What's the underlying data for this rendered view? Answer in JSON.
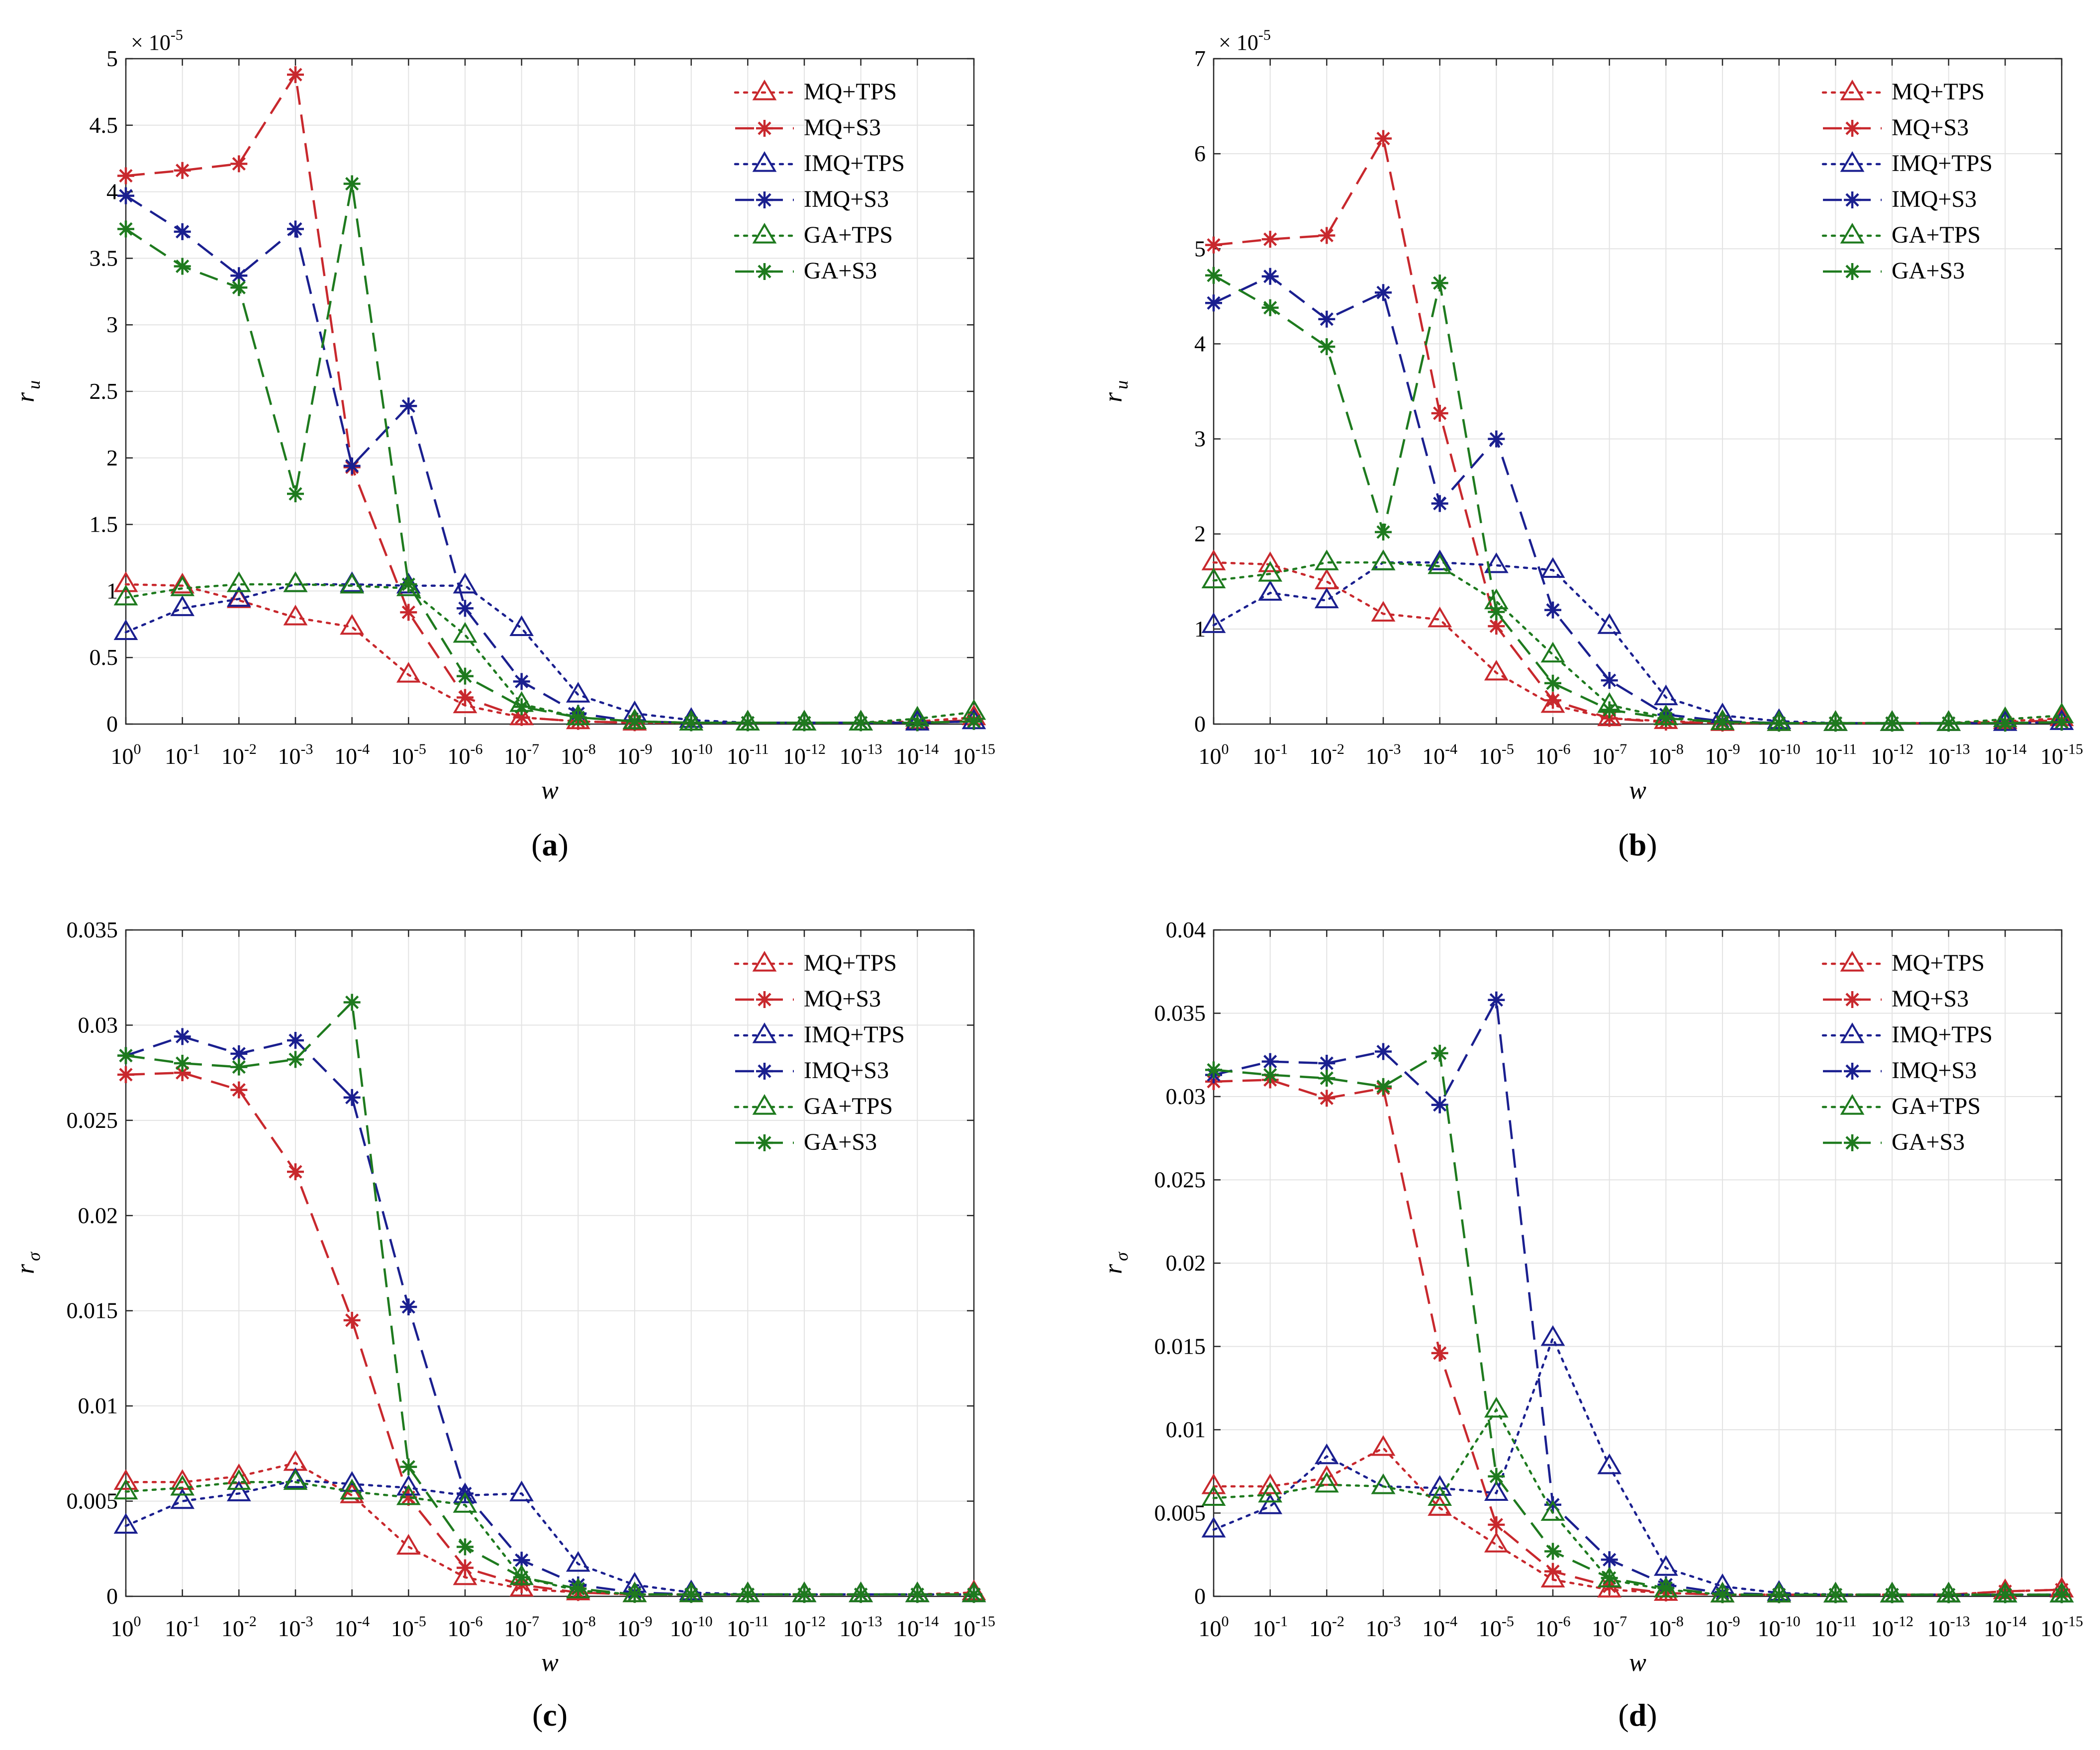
{
  "chart_data": [
    {
      "panel": "a",
      "type": "line",
      "xlabel": "w",
      "ylabel": "r",
      "ylabel_sub": "u",
      "ylim": [
        0,
        5
      ],
      "yticks": [
        0,
        0.5,
        1,
        1.5,
        2,
        2.5,
        3,
        3.5,
        4,
        4.5,
        5
      ],
      "ytick_labels": [
        "0",
        "0.5",
        "1",
        "1.5",
        "2",
        "2.5",
        "3",
        "3.5",
        "4",
        "4.5",
        "5"
      ],
      "y_multiplier": {
        "base": "× 10",
        "exponent": "-5"
      },
      "x_tick_base": "10",
      "x_tick_exponents": [
        "0",
        "-1",
        "-2",
        "-3",
        "-4",
        "-5",
        "-6",
        "-7",
        "-8",
        "-9",
        "-10",
        "-11",
        "-12",
        "-13",
        "-14",
        "-15"
      ],
      "grid": true,
      "legend_position": "top-right",
      "series": [
        {
          "name": "MQ+TPS",
          "color": "#c8282d",
          "line": "dotted",
          "marker": "triangle",
          "values": [
            1.05,
            1.04,
            0.93,
            0.8,
            0.73,
            0.37,
            0.14,
            0.05,
            0.02,
            0.01,
            0.01,
            0.01,
            0.01,
            0.01,
            0.02,
            0.05
          ]
        },
        {
          "name": "MQ+S3",
          "color": "#c8282d",
          "line": "dashed",
          "marker": "star",
          "values": [
            4.12,
            4.16,
            4.21,
            4.88,
            1.93,
            0.84,
            0.2,
            0.05,
            0.02,
            0.01,
            0.01,
            0.01,
            0.01,
            0.01,
            0.01,
            0.03
          ]
        },
        {
          "name": "IMQ+TPS",
          "color": "#1a1f8f",
          "line": "dotted",
          "marker": "triangle",
          "values": [
            0.69,
            0.87,
            0.94,
            1.05,
            1.05,
            1.04,
            1.04,
            0.72,
            0.22,
            0.08,
            0.03,
            0.01,
            0.01,
            0.01,
            0.01,
            0.02
          ]
        },
        {
          "name": "IMQ+S3",
          "color": "#1a1f8f",
          "line": "dashed",
          "marker": "star",
          "values": [
            3.97,
            3.7,
            3.37,
            3.72,
            1.94,
            2.39,
            0.87,
            0.32,
            0.08,
            0.02,
            0.01,
            0.01,
            0.01,
            0.01,
            0.01,
            0.02
          ]
        },
        {
          "name": "GA+TPS",
          "color": "#1e7a1e",
          "line": "dotted",
          "marker": "triangle",
          "values": [
            0.95,
            1.02,
            1.05,
            1.05,
            1.04,
            1.02,
            0.67,
            0.15,
            0.05,
            0.02,
            0.01,
            0.01,
            0.01,
            0.01,
            0.04,
            0.09
          ]
        },
        {
          "name": "GA+S3",
          "color": "#1e7a1e",
          "line": "dashed",
          "marker": "star",
          "values": [
            3.72,
            3.44,
            3.28,
            1.73,
            4.06,
            1.05,
            0.36,
            0.13,
            0.05,
            0.02,
            0.01,
            0.01,
            0.01,
            0.01,
            0.01,
            0.02
          ]
        }
      ]
    },
    {
      "panel": "b",
      "type": "line",
      "xlabel": "w",
      "ylabel": "r",
      "ylabel_sub": "u",
      "ylim": [
        0,
        7
      ],
      "yticks": [
        0,
        1,
        2,
        3,
        4,
        5,
        6,
        7
      ],
      "ytick_labels": [
        "0",
        "1",
        "2",
        "3",
        "4",
        "5",
        "6",
        "7"
      ],
      "y_multiplier": {
        "base": "× 10",
        "exponent": "-5"
      },
      "x_tick_base": "10",
      "x_tick_exponents": [
        "0",
        "-1",
        "-2",
        "-3",
        "-4",
        "-5",
        "-6",
        "-7",
        "-8",
        "-9",
        "-10",
        "-11",
        "-12",
        "-13",
        "-14",
        "-15"
      ],
      "grid": true,
      "legend_position": "top-right",
      "series": [
        {
          "name": "MQ+TPS",
          "color": "#c8282d",
          "line": "dotted",
          "marker": "triangle",
          "values": [
            1.7,
            1.68,
            1.5,
            1.16,
            1.1,
            0.54,
            0.2,
            0.06,
            0.03,
            0.01,
            0.01,
            0.01,
            0.01,
            0.01,
            0.03,
            0.06
          ]
        },
        {
          "name": "MQ+S3",
          "color": "#c8282d",
          "line": "dashed",
          "marker": "star",
          "values": [
            5.04,
            5.1,
            5.14,
            6.16,
            3.27,
            1.03,
            0.25,
            0.06,
            0.02,
            0.01,
            0.01,
            0.01,
            0.01,
            0.01,
            0.02,
            0.04
          ]
        },
        {
          "name": "IMQ+TPS",
          "color": "#1a1f8f",
          "line": "dotted",
          "marker": "triangle",
          "values": [
            1.04,
            1.38,
            1.3,
            1.7,
            1.7,
            1.67,
            1.62,
            1.03,
            0.28,
            0.09,
            0.03,
            0.01,
            0.01,
            0.01,
            0.01,
            0.02
          ]
        },
        {
          "name": "IMQ+S3",
          "color": "#1a1f8f",
          "line": "dashed",
          "marker": "star",
          "values": [
            4.43,
            4.71,
            4.26,
            4.54,
            2.32,
            3.0,
            1.2,
            0.46,
            0.1,
            0.03,
            0.01,
            0.01,
            0.01,
            0.01,
            0.01,
            0.02
          ]
        },
        {
          "name": "GA+TPS",
          "color": "#1e7a1e",
          "line": "dotted",
          "marker": "triangle",
          "values": [
            1.51,
            1.58,
            1.7,
            1.7,
            1.66,
            1.29,
            0.73,
            0.2,
            0.07,
            0.02,
            0.01,
            0.01,
            0.01,
            0.01,
            0.05,
            0.09
          ]
        },
        {
          "name": "GA+S3",
          "color": "#1e7a1e",
          "line": "dashed",
          "marker": "star",
          "values": [
            4.72,
            4.38,
            3.97,
            2.02,
            4.64,
            1.18,
            0.43,
            0.15,
            0.06,
            0.02,
            0.01,
            0.01,
            0.01,
            0.01,
            0.01,
            0.02
          ]
        }
      ]
    },
    {
      "panel": "c",
      "type": "line",
      "xlabel": "w",
      "ylabel": "r",
      "ylabel_sub": "σ",
      "ylim": [
        0,
        0.035
      ],
      "yticks": [
        0,
        0.005,
        0.01,
        0.015,
        0.02,
        0.025,
        0.03,
        0.035
      ],
      "ytick_labels": [
        "0",
        "0.005",
        "0.01",
        "0.015",
        "0.02",
        "0.025",
        "0.03",
        "0.035"
      ],
      "x_tick_base": "10",
      "x_tick_exponents": [
        "0",
        "-1",
        "-2",
        "-3",
        "-4",
        "-5",
        "-6",
        "-7",
        "-8",
        "-9",
        "-10",
        "-11",
        "-12",
        "-13",
        "-14",
        "-15"
      ],
      "grid": true,
      "legend_position": "top-right",
      "series": [
        {
          "name": "MQ+TPS",
          "color": "#c8282d",
          "line": "dotted",
          "marker": "triangle",
          "values": [
            0.006,
            0.006,
            0.0063,
            0.007,
            0.0053,
            0.0026,
            0.001,
            0.0004,
            0.0002,
            0.0001,
            0.0001,
            0.0001,
            0.0001,
            0.0001,
            0.0001,
            0.0002
          ]
        },
        {
          "name": "MQ+S3",
          "color": "#c8282d",
          "line": "dashed",
          "marker": "star",
          "values": [
            0.0274,
            0.0275,
            0.0266,
            0.0223,
            0.0145,
            0.0052,
            0.0015,
            0.0006,
            0.0002,
            0.0001,
            0.0001,
            0.0001,
            0.0001,
            0.0001,
            0.0001,
            0.0001
          ]
        },
        {
          "name": "IMQ+TPS",
          "color": "#1a1f8f",
          "line": "dotted",
          "marker": "triangle",
          "values": [
            0.0037,
            0.005,
            0.0054,
            0.0061,
            0.0059,
            0.0057,
            0.0053,
            0.0054,
            0.0017,
            0.0006,
            0.0002,
            0.0001,
            0.0001,
            0.0001,
            0.0001,
            0.0001
          ]
        },
        {
          "name": "IMQ+S3",
          "color": "#1a1f8f",
          "line": "dashed",
          "marker": "star",
          "values": [
            0.0284,
            0.0294,
            0.0285,
            0.0292,
            0.0262,
            0.0152,
            0.0054,
            0.0019,
            0.0006,
            0.0002,
            0.0001,
            0.0001,
            0.0001,
            0.0001,
            0.0001,
            0.0001
          ]
        },
        {
          "name": "GA+TPS",
          "color": "#1e7a1e",
          "line": "dotted",
          "marker": "triangle",
          "values": [
            0.0055,
            0.0057,
            0.006,
            0.006,
            0.0055,
            0.0052,
            0.0048,
            0.001,
            0.0003,
            0.0001,
            0.0001,
            0.0001,
            0.0001,
            0.0001,
            0.0001,
            0.0001
          ]
        },
        {
          "name": "GA+S3",
          "color": "#1e7a1e",
          "line": "dashed",
          "marker": "star",
          "values": [
            0.0284,
            0.028,
            0.0278,
            0.0282,
            0.0312,
            0.0068,
            0.0026,
            0.001,
            0.0004,
            0.0001,
            0.0001,
            0.0001,
            0.0001,
            0.0001,
            0.0001,
            0.0001
          ]
        }
      ]
    },
    {
      "panel": "d",
      "type": "line",
      "xlabel": "w",
      "ylabel": "r",
      "ylabel_sub": "σ",
      "ylim": [
        0,
        0.04
      ],
      "yticks": [
        0,
        0.005,
        0.01,
        0.015,
        0.02,
        0.025,
        0.03,
        0.035,
        0.04
      ],
      "ytick_labels": [
        "0",
        "0.005",
        "0.01",
        "0.015",
        "0.02",
        "0.025",
        "0.03",
        "0.035",
        "0.04"
      ],
      "x_tick_base": "10",
      "x_tick_exponents": [
        "0",
        "-1",
        "-2",
        "-3",
        "-4",
        "-5",
        "-6",
        "-7",
        "-8",
        "-9",
        "-10",
        "-11",
        "-12",
        "-13",
        "-14",
        "-15"
      ],
      "grid": true,
      "legend_position": "top-right",
      "series": [
        {
          "name": "MQ+TPS",
          "color": "#c8282d",
          "line": "dotted",
          "marker": "triangle",
          "values": [
            0.0066,
            0.0066,
            0.0071,
            0.0089,
            0.0053,
            0.0031,
            0.001,
            0.0004,
            0.0002,
            0.0001,
            0.0001,
            0.0001,
            0.0001,
            0.0001,
            0.0003,
            0.0004
          ]
        },
        {
          "name": "MQ+S3",
          "color": "#c8282d",
          "line": "dashed",
          "marker": "star",
          "values": [
            0.0309,
            0.031,
            0.0299,
            0.0305,
            0.0146,
            0.0043,
            0.0015,
            0.0006,
            0.0002,
            0.0001,
            0.0001,
            0.0001,
            0.0001,
            0.0001,
            0.0003,
            0.0004
          ]
        },
        {
          "name": "IMQ+TPS",
          "color": "#1a1f8f",
          "line": "dotted",
          "marker": "triangle",
          "values": [
            0.004,
            0.0054,
            0.0084,
            0.0066,
            0.0065,
            0.0062,
            0.0155,
            0.0078,
            0.0017,
            0.0006,
            0.0002,
            0.0001,
            0.0001,
            0.0001,
            0.0001,
            0.0001
          ]
        },
        {
          "name": "IMQ+S3",
          "color": "#1a1f8f",
          "line": "dashed",
          "marker": "star",
          "values": [
            0.0313,
            0.0321,
            0.032,
            0.0327,
            0.0295,
            0.0358,
            0.0055,
            0.0022,
            0.0007,
            0.0002,
            0.0001,
            0.0001,
            0.0001,
            0.0001,
            0.0001,
            0.0001
          ]
        },
        {
          "name": "GA+TPS",
          "color": "#1e7a1e",
          "line": "dotted",
          "marker": "triangle",
          "values": [
            0.0059,
            0.0061,
            0.0067,
            0.0066,
            0.0059,
            0.0112,
            0.005,
            0.001,
            0.0004,
            0.0001,
            0.0001,
            0.0001,
            0.0001,
            0.0001,
            0.0001,
            0.0001
          ]
        },
        {
          "name": "GA+S3",
          "color": "#1e7a1e",
          "line": "dashed",
          "marker": "star",
          "values": [
            0.0316,
            0.0313,
            0.0311,
            0.0306,
            0.0326,
            0.0072,
            0.0027,
            0.0011,
            0.0005,
            0.0001,
            0.0001,
            0.0001,
            0.0001,
            0.0001,
            0.0001,
            0.0001
          ]
        }
      ]
    }
  ]
}
